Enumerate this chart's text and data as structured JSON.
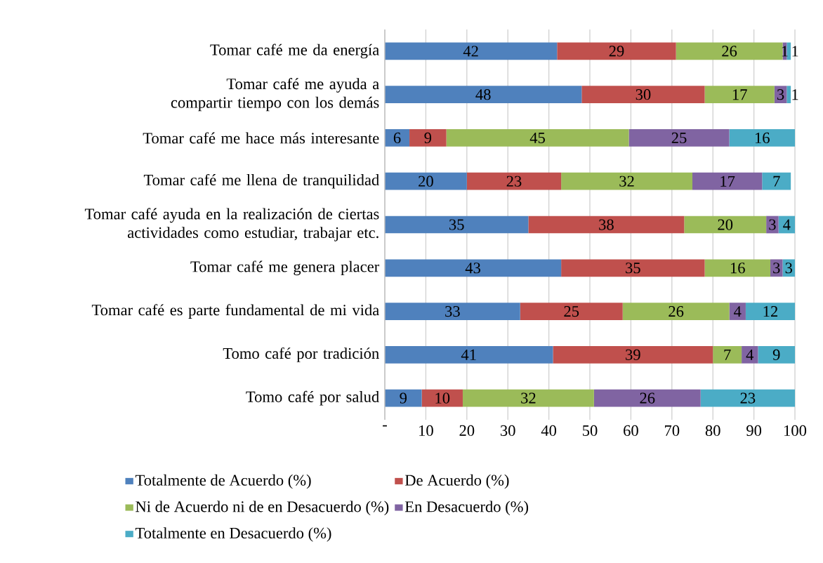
{
  "chart_data": {
    "type": "bar",
    "orientation": "horizontal",
    "stacked": true,
    "grid": "x",
    "legend": "bottom",
    "categories": [
      "Tomar café  me da energía",
      "Tomar café me ayuda a compartir tiempo con los demás",
      "Tomar café me hace más interesante",
      "Tomar café me llena de tranquilidad",
      "Tomar café ayuda en la realización de  ciertas actividades como estudiar, trabajar etc.",
      "Tomar café me genera placer",
      "Tomar café es parte fundamental de mi vida",
      "Tomo café por tradición",
      "Tomo café por salud"
    ],
    "series": [
      {
        "name": "Totalmente de Acuerdo (%)",
        "color": "#4f81bd",
        "values": [
          42,
          48,
          6,
          20,
          35,
          43,
          33,
          41,
          9
        ],
        "value_labels": [
          "42",
          "48",
          "6",
          "20",
          "35",
          "43",
          "33",
          "41",
          "9"
        ]
      },
      {
        "name": "De Acuerdo (%)",
        "color": "#c0504d",
        "values": [
          29,
          30,
          9,
          23,
          38,
          35,
          25,
          39,
          10
        ],
        "value_labels": [
          "29",
          "30",
          "9",
          "23",
          "38",
          "35",
          "25",
          "39",
          "10"
        ]
      },
      {
        "name": "Ni de Acuerdo ni de en Desacuerdo (%)",
        "color": "#9bbb59",
        "values": [
          26,
          17,
          44.5,
          32,
          20,
          16,
          26,
          7,
          32
        ],
        "value_labels": [
          "26",
          "17",
          "45",
          "32",
          "20",
          "16",
          "26",
          "7",
          "32"
        ]
      },
      {
        "name": "En Desacuerdo (%)",
        "color": "#8064a2",
        "values": [
          1,
          3,
          24.5,
          17,
          3,
          3,
          4,
          4,
          26
        ],
        "value_labels": [
          "1",
          "3",
          "25",
          "17",
          "3",
          "3",
          "4",
          "4",
          "26"
        ]
      },
      {
        "name": "Totalmente en Desacuerdo (%)",
        "color": "#4bacc6",
        "values": [
          1,
          1,
          16,
          7,
          4,
          3,
          12,
          9,
          23
        ],
        "value_labels": [
          "1",
          "1",
          "16",
          "7",
          "4",
          "3",
          "12",
          "9",
          "23"
        ]
      }
    ],
    "xlim": [
      0,
      100
    ],
    "xticks": [
      {
        "value": 0,
        "label": "-"
      },
      10,
      20,
      30,
      40,
      50,
      60,
      70,
      80,
      90,
      100
    ]
  }
}
